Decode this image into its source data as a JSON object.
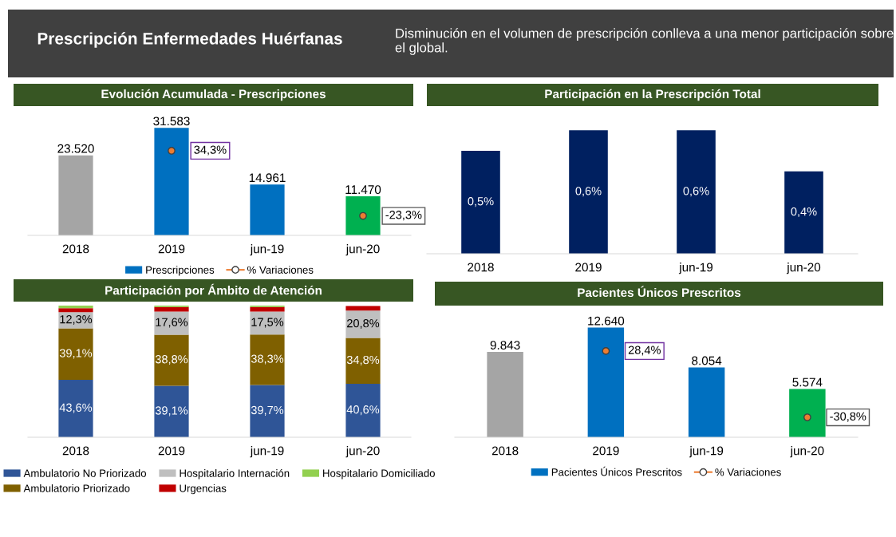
{
  "chart_data": [
    {
      "type": "other",
      "title": "Prescripción Enfermedades Huérfanas",
      "subtitle": "Disminución en el volumen de prescripción conlleva a una menor participación sobre el global."
    },
    {
      "type": "bar",
      "title": "Evolución Acumulada - Prescripciones",
      "categories": [
        "2018",
        "2019",
        "jun-19",
        "jun-20"
      ],
      "tick_labels": "x",
      "legend": "bottom",
      "grid": false,
      "series": [
        {
          "name": "Prescripciones",
          "type": "bar",
          "color": "#0070c0",
          "colors": [
            "#a5a5a5",
            "#0070c0",
            "#0070c0",
            "#00b050"
          ],
          "values": [
            23520,
            31583,
            14961,
            11470
          ],
          "value_labels": [
            "23.520",
            "31.583",
            "14.961",
            "11.470"
          ]
        },
        {
          "name": "% Variaciones",
          "type": "scatter",
          "axis": "y2",
          "color": "#ed7d31",
          "marker": "circle",
          "values": [
            null,
            34.3,
            null,
            -23.3
          ],
          "value_labels": [
            null,
            "34,3%",
            null,
            "-23,3%"
          ]
        }
      ]
    },
    {
      "type": "bar",
      "title": "Participación en la Prescripción Total",
      "categories": [
        "2018",
        "2019",
        "jun-19",
        "jun-20"
      ],
      "tick_labels": "x",
      "grid": false,
      "series": [
        {
          "type": "bar",
          "color": "#002060",
          "values": [
            0.5,
            0.6,
            0.6,
            0.4
          ],
          "value_labels": [
            "0,5%",
            "0,6%",
            "0,6%",
            "0,4%"
          ]
        }
      ]
    },
    {
      "type": "bar",
      "title": "Participación por Ámbito de Atención",
      "categories": [
        "2018",
        "2019",
        "jun-19",
        "jun-20"
      ],
      "stacked": true,
      "ylim": [
        0,
        100
      ],
      "tick_labels": "x",
      "legend": "bottom",
      "grid": false,
      "series": [
        {
          "name": "Ambulatorio No Priorizado",
          "type": "bar",
          "color": "#2f5597",
          "values": [
            43.6,
            39.1,
            39.7,
            40.6
          ],
          "value_labels": [
            "43,6%",
            "39,1%",
            "39,7%",
            "40,6%"
          ]
        },
        {
          "name": "Ambulatorio Priorizado",
          "type": "bar",
          "color": "#7f6000",
          "values": [
            39.1,
            38.8,
            38.3,
            34.8
          ],
          "value_labels": [
            "39,1%",
            "38,8%",
            "38,3%",
            "34,8%"
          ]
        },
        {
          "name": "Hospitalario Internación",
          "type": "bar",
          "color": "#bfbfbf",
          "values": [
            12.3,
            17.6,
            17.5,
            20.8
          ],
          "value_labels": [
            "12,3%",
            "17,6%",
            "17,5%",
            "20,8%"
          ]
        },
        {
          "name": "Urgencias",
          "type": "bar",
          "color": "#c00000",
          "values": [
            3.0,
            3.5,
            3.5,
            3.5
          ]
        },
        {
          "name": "Hospitalario Domiciliado",
          "type": "bar",
          "color": "#92d050",
          "values": [
            2.0,
            1.0,
            1.0,
            null
          ]
        }
      ]
    },
    {
      "type": "bar",
      "title": "Pacientes Únicos Prescritos",
      "categories": [
        "2018",
        "2019",
        "jun-19",
        "jun-20"
      ],
      "tick_labels": "x",
      "legend": "bottom",
      "grid": false,
      "series": [
        {
          "name": "Pacientes Únicos Prescritos",
          "type": "bar",
          "color": "#0070c0",
          "colors": [
            "#a5a5a5",
            "#0070c0",
            "#0070c0",
            "#00b050"
          ],
          "values": [
            9843,
            12640,
            8054,
            5574
          ],
          "value_labels": [
            "9.843",
            "12.640",
            "8.054",
            "5.574"
          ]
        },
        {
          "name": "% Variaciones",
          "type": "scatter",
          "axis": "y2",
          "color": "#ed7d31",
          "marker": "circle",
          "values": [
            null,
            28.4,
            null,
            -30.8
          ],
          "value_labels": [
            null,
            "28,4%",
            null,
            "-30,8%"
          ]
        }
      ]
    }
  ]
}
